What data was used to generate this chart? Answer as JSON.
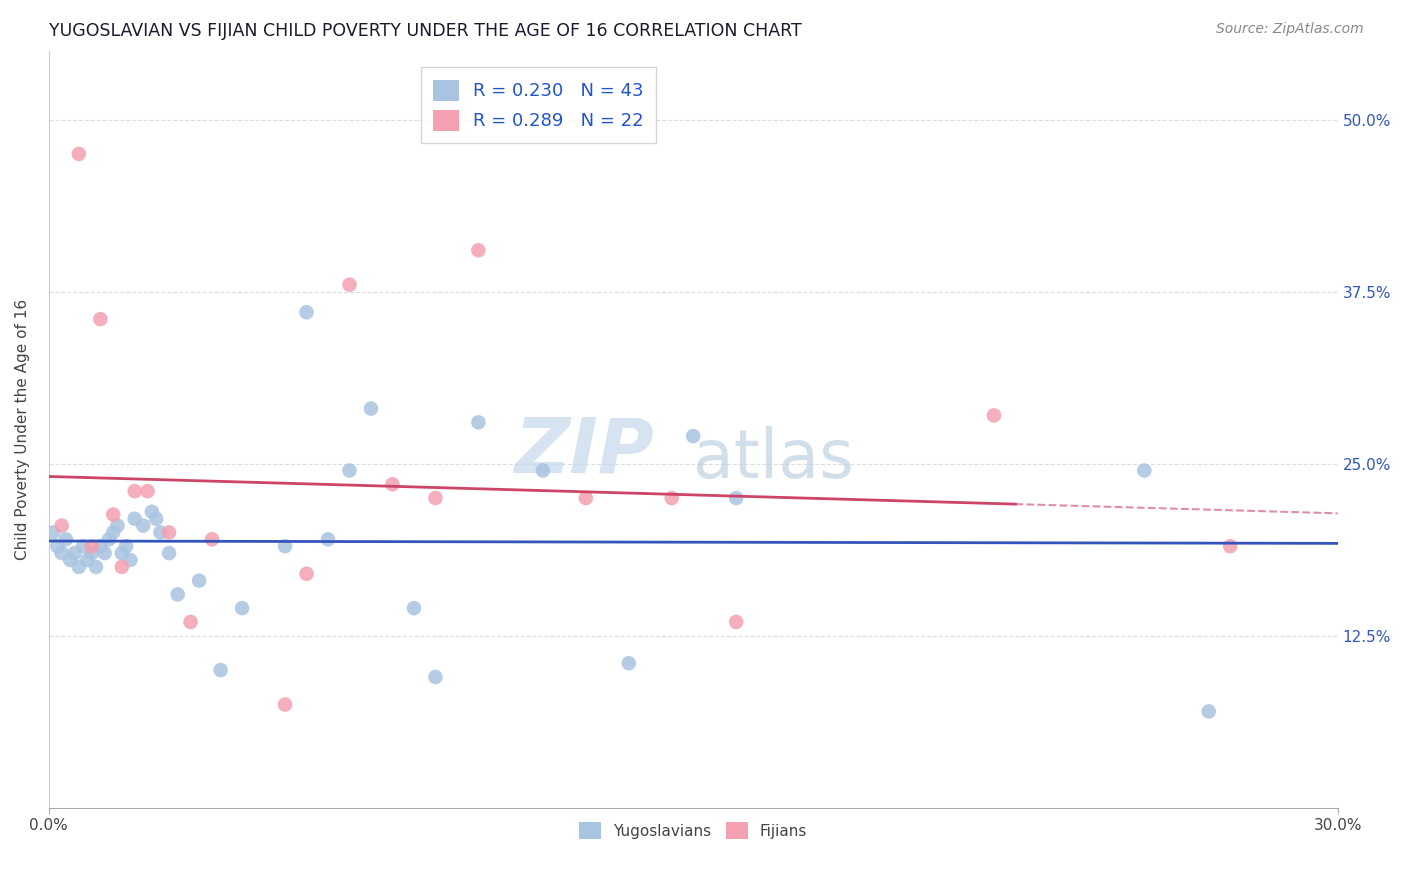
{
  "title": "YUGOSLAVIAN VS FIJIAN CHILD POVERTY UNDER THE AGE OF 16 CORRELATION CHART",
  "source": "Source: ZipAtlas.com",
  "ylabel": "Child Poverty Under the Age of 16",
  "yug_R": 0.23,
  "yug_N": 43,
  "fij_R": 0.289,
  "fij_N": 22,
  "yug_color": "#a8c4e0",
  "fij_color": "#f4a0b0",
  "yug_line_color": "#3355bb",
  "fij_line_color": "#cc4466",
  "background_color": "#ffffff",
  "grid_color": "#dddddd",
  "xlim": [
    0.0,
    0.3
  ],
  "ylim": [
    0.0,
    0.55
  ],
  "yug_scatter_x": [
    0.001,
    0.002,
    0.003,
    0.004,
    0.005,
    0.006,
    0.007,
    0.008,
    0.009,
    0.01,
    0.011,
    0.012,
    0.013,
    0.014,
    0.015,
    0.016,
    0.017,
    0.018,
    0.019,
    0.02,
    0.022,
    0.024,
    0.025,
    0.026,
    0.028,
    0.03,
    0.035,
    0.04,
    0.045,
    0.055,
    0.06,
    0.065,
    0.07,
    0.075,
    0.085,
    0.09,
    0.1,
    0.115,
    0.135,
    0.15,
    0.16,
    0.255,
    0.27
  ],
  "yug_scatter_y": [
    0.2,
    0.19,
    0.185,
    0.195,
    0.18,
    0.185,
    0.175,
    0.19,
    0.18,
    0.185,
    0.175,
    0.19,
    0.185,
    0.195,
    0.2,
    0.205,
    0.185,
    0.19,
    0.18,
    0.21,
    0.205,
    0.215,
    0.21,
    0.2,
    0.185,
    0.155,
    0.165,
    0.1,
    0.145,
    0.19,
    0.36,
    0.195,
    0.245,
    0.29,
    0.145,
    0.095,
    0.28,
    0.245,
    0.105,
    0.27,
    0.225,
    0.245,
    0.07
  ],
  "fij_scatter_x": [
    0.003,
    0.007,
    0.01,
    0.012,
    0.015,
    0.017,
    0.02,
    0.023,
    0.028,
    0.033,
    0.038,
    0.055,
    0.06,
    0.07,
    0.08,
    0.09,
    0.1,
    0.125,
    0.145,
    0.16,
    0.22,
    0.275
  ],
  "fij_scatter_y": [
    0.205,
    0.475,
    0.19,
    0.355,
    0.213,
    0.175,
    0.23,
    0.23,
    0.2,
    0.135,
    0.195,
    0.075,
    0.17,
    0.38,
    0.235,
    0.225,
    0.405,
    0.225,
    0.225,
    0.135,
    0.285,
    0.19
  ],
  "watermark": "ZIPatlas",
  "watermark_zip_color": "#c8d8e8",
  "watermark_atlas_color": "#c8d8e8"
}
